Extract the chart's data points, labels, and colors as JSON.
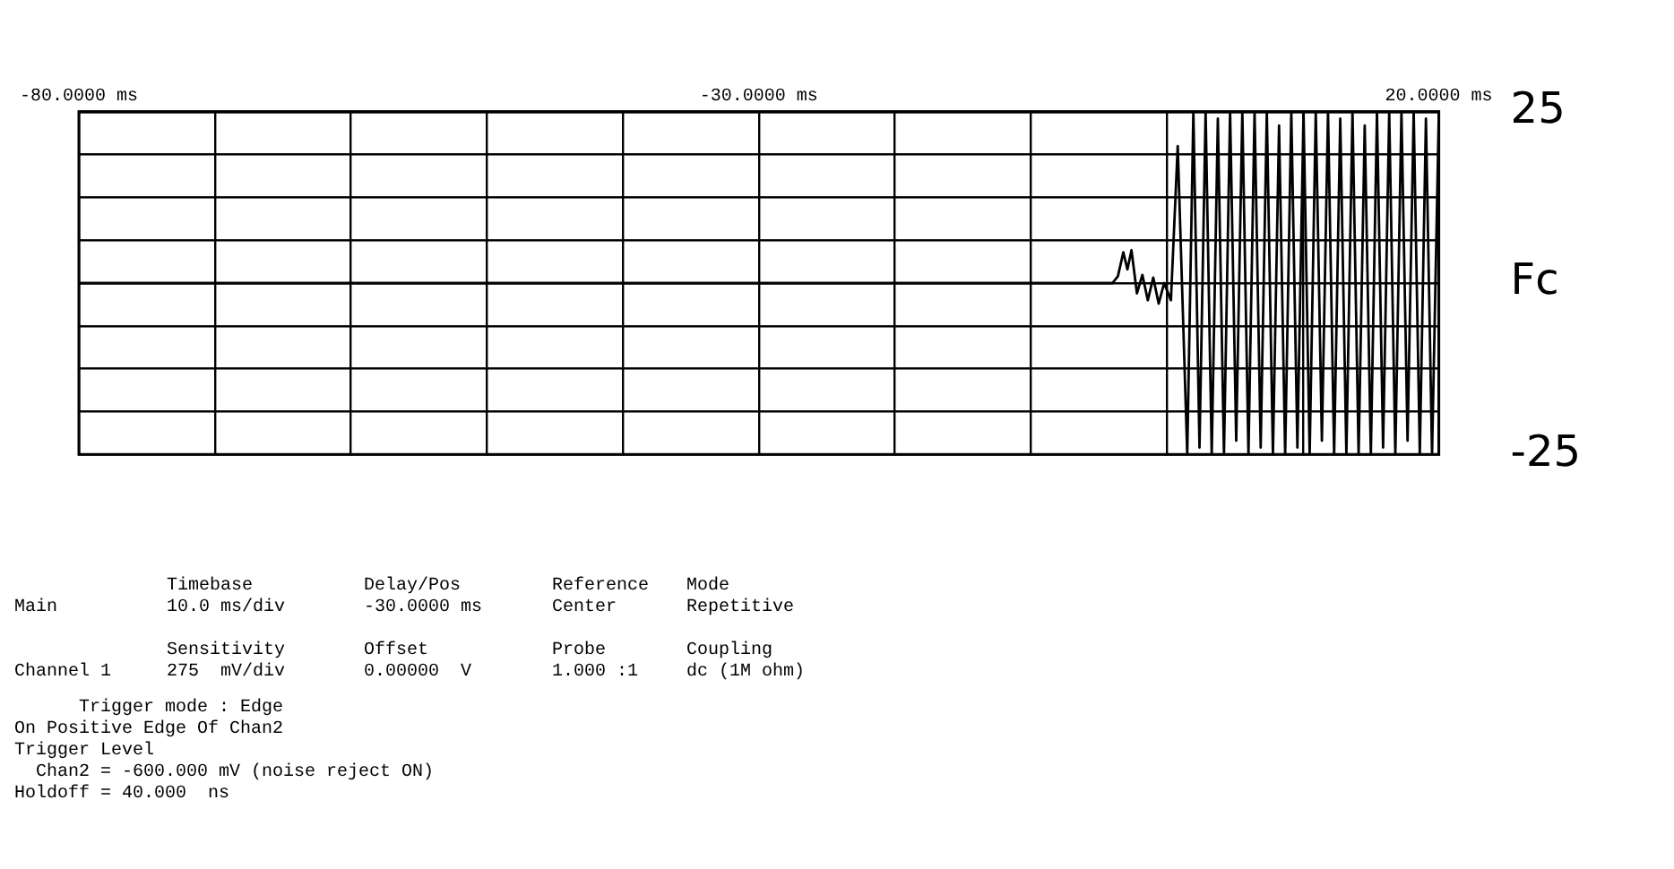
{
  "chart_data": {
    "type": "line",
    "grid": true,
    "legend": false,
    "marker": "none",
    "line_style": "solid",
    "xlim": [
      -80,
      20
    ],
    "xticks": [
      {
        "value": -80,
        "label": "-80.0000 ms"
      },
      {
        "value": -70,
        "label": null
      },
      {
        "value": -60,
        "label": null
      },
      {
        "value": -50,
        "label": null
      },
      {
        "value": -40,
        "label": null
      },
      {
        "value": -30,
        "label": "-30.0000 ms"
      },
      {
        "value": -20,
        "label": null
      },
      {
        "value": -10,
        "label": null
      },
      {
        "value": 0,
        "label": null
      },
      {
        "value": 10,
        "label": null
      },
      {
        "value": 20,
        "label": "20.0000 ms"
      }
    ],
    "ylim": [
      -25,
      25
    ],
    "yticks": [
      -25,
      {
        "value": -18.75,
        "label": null
      },
      {
        "value": -12.5,
        "label": null
      },
      {
        "value": -6.25,
        "label": null
      },
      {
        "value": 0,
        "label": "Fc"
      },
      {
        "value": 6.25,
        "label": null
      },
      {
        "value": 12.5,
        "label": null
      },
      {
        "value": 18.75,
        "label": null
      },
      25
    ],
    "series": [
      {
        "color": "#000000",
        "x": [
          -80,
          -4,
          -3.6,
          -3.2,
          -2.9,
          -2.6,
          -2.2,
          -1.8,
          -1.4,
          -1.0,
          -0.6,
          -0.2,
          0.3,
          0.8,
          1.5,
          1.95,
          2.4,
          2.85,
          3.3,
          3.75,
          4.2,
          4.65,
          5.1,
          5.55,
          6.0,
          6.45,
          6.9,
          7.35,
          7.8,
          8.25,
          8.7,
          9.15,
          9.6,
          10.05,
          10.5,
          10.95,
          11.4,
          11.85,
          12.3,
          12.75,
          13.2,
          13.65,
          14.1,
          14.55,
          15.0,
          15.45,
          15.9,
          16.35,
          16.8,
          17.25,
          17.7,
          18.15,
          18.6,
          19.05,
          19.5,
          20
        ],
        "values": [
          0,
          0,
          1,
          4.5,
          2,
          4.8,
          -1.5,
          1.2,
          -2.5,
          0.8,
          -3,
          0,
          -2.5,
          20,
          -25,
          25,
          -24,
          25,
          -25,
          24,
          -25,
          25,
          -23,
          25,
          -25,
          25,
          -24,
          25,
          -25,
          23,
          -25,
          25,
          -24,
          25,
          -25,
          25,
          -23,
          25,
          -25,
          24,
          -25,
          25,
          -25,
          23,
          -25,
          25,
          -24,
          25,
          -25,
          25,
          -23,
          25,
          -25,
          24,
          -25,
          25
        ]
      }
    ],
    "annotations": [
      "Timebase",
      "Delay/Pos",
      "Reference",
      "Mode",
      "Main",
      "10.0 ms/div",
      "-30.0000 ms",
      "Center",
      "Repetitive",
      "Sensitivity",
      "Offset",
      "Probe",
      "Coupling",
      "Channel 1",
      "275  mV/div",
      "0.00000  V",
      "1.000 :1",
      "dc (1M ohm)",
      "      Trigger mode : Edge",
      "On Positive Edge Of Chan2",
      "Trigger Level",
      "  Chan2 = -600.000 mV (noise reject ON)",
      "Holdoff = 40.000  ns"
    ]
  }
}
